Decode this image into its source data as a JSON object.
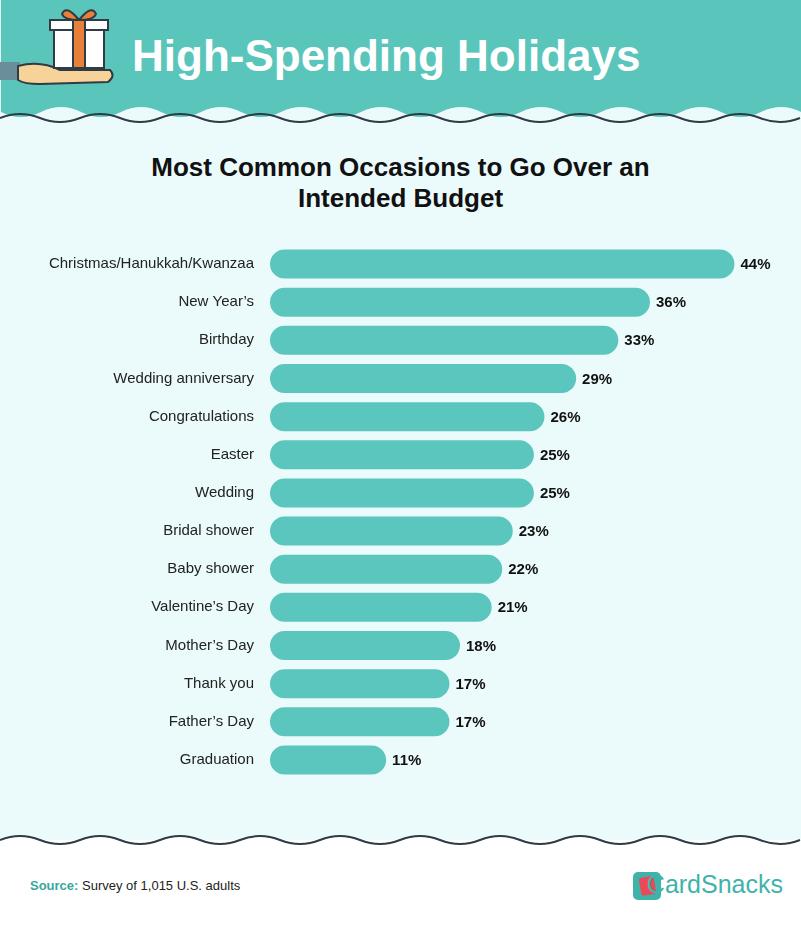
{
  "header": {
    "title": "High-Spending Holidays"
  },
  "chart_data": {
    "type": "bar",
    "orientation": "horizontal",
    "title": "Most Common Occasions to Go Over an Intended Budget",
    "categories": [
      "Christmas/Hanukkah/Kwanzaa",
      "New Year’s",
      "Birthday",
      "Wedding anniversary",
      "Congratulations",
      "Easter",
      "Wedding",
      "Bridal shower",
      "Baby shower",
      "Valentine’s Day",
      "Mother’s Day",
      "Thank you",
      "Father’s Day",
      "Graduation"
    ],
    "values": [
      44,
      36,
      33,
      29,
      26,
      25,
      25,
      23,
      22,
      21,
      18,
      17,
      17,
      11
    ],
    "value_labels": [
      "44%",
      "36%",
      "33%",
      "29%",
      "26%",
      "25%",
      "25%",
      "23%",
      "22%",
      "21%",
      "18%",
      "17%",
      "17%",
      "11%"
    ],
    "color": "#5bc6bd",
    "data_labels": true,
    "tick_labels": "y",
    "grid": false
  },
  "footer": {
    "source_label": "Source:",
    "source": "Survey of 1,015 U.S. adults",
    "brand": "CardSnacks"
  }
}
